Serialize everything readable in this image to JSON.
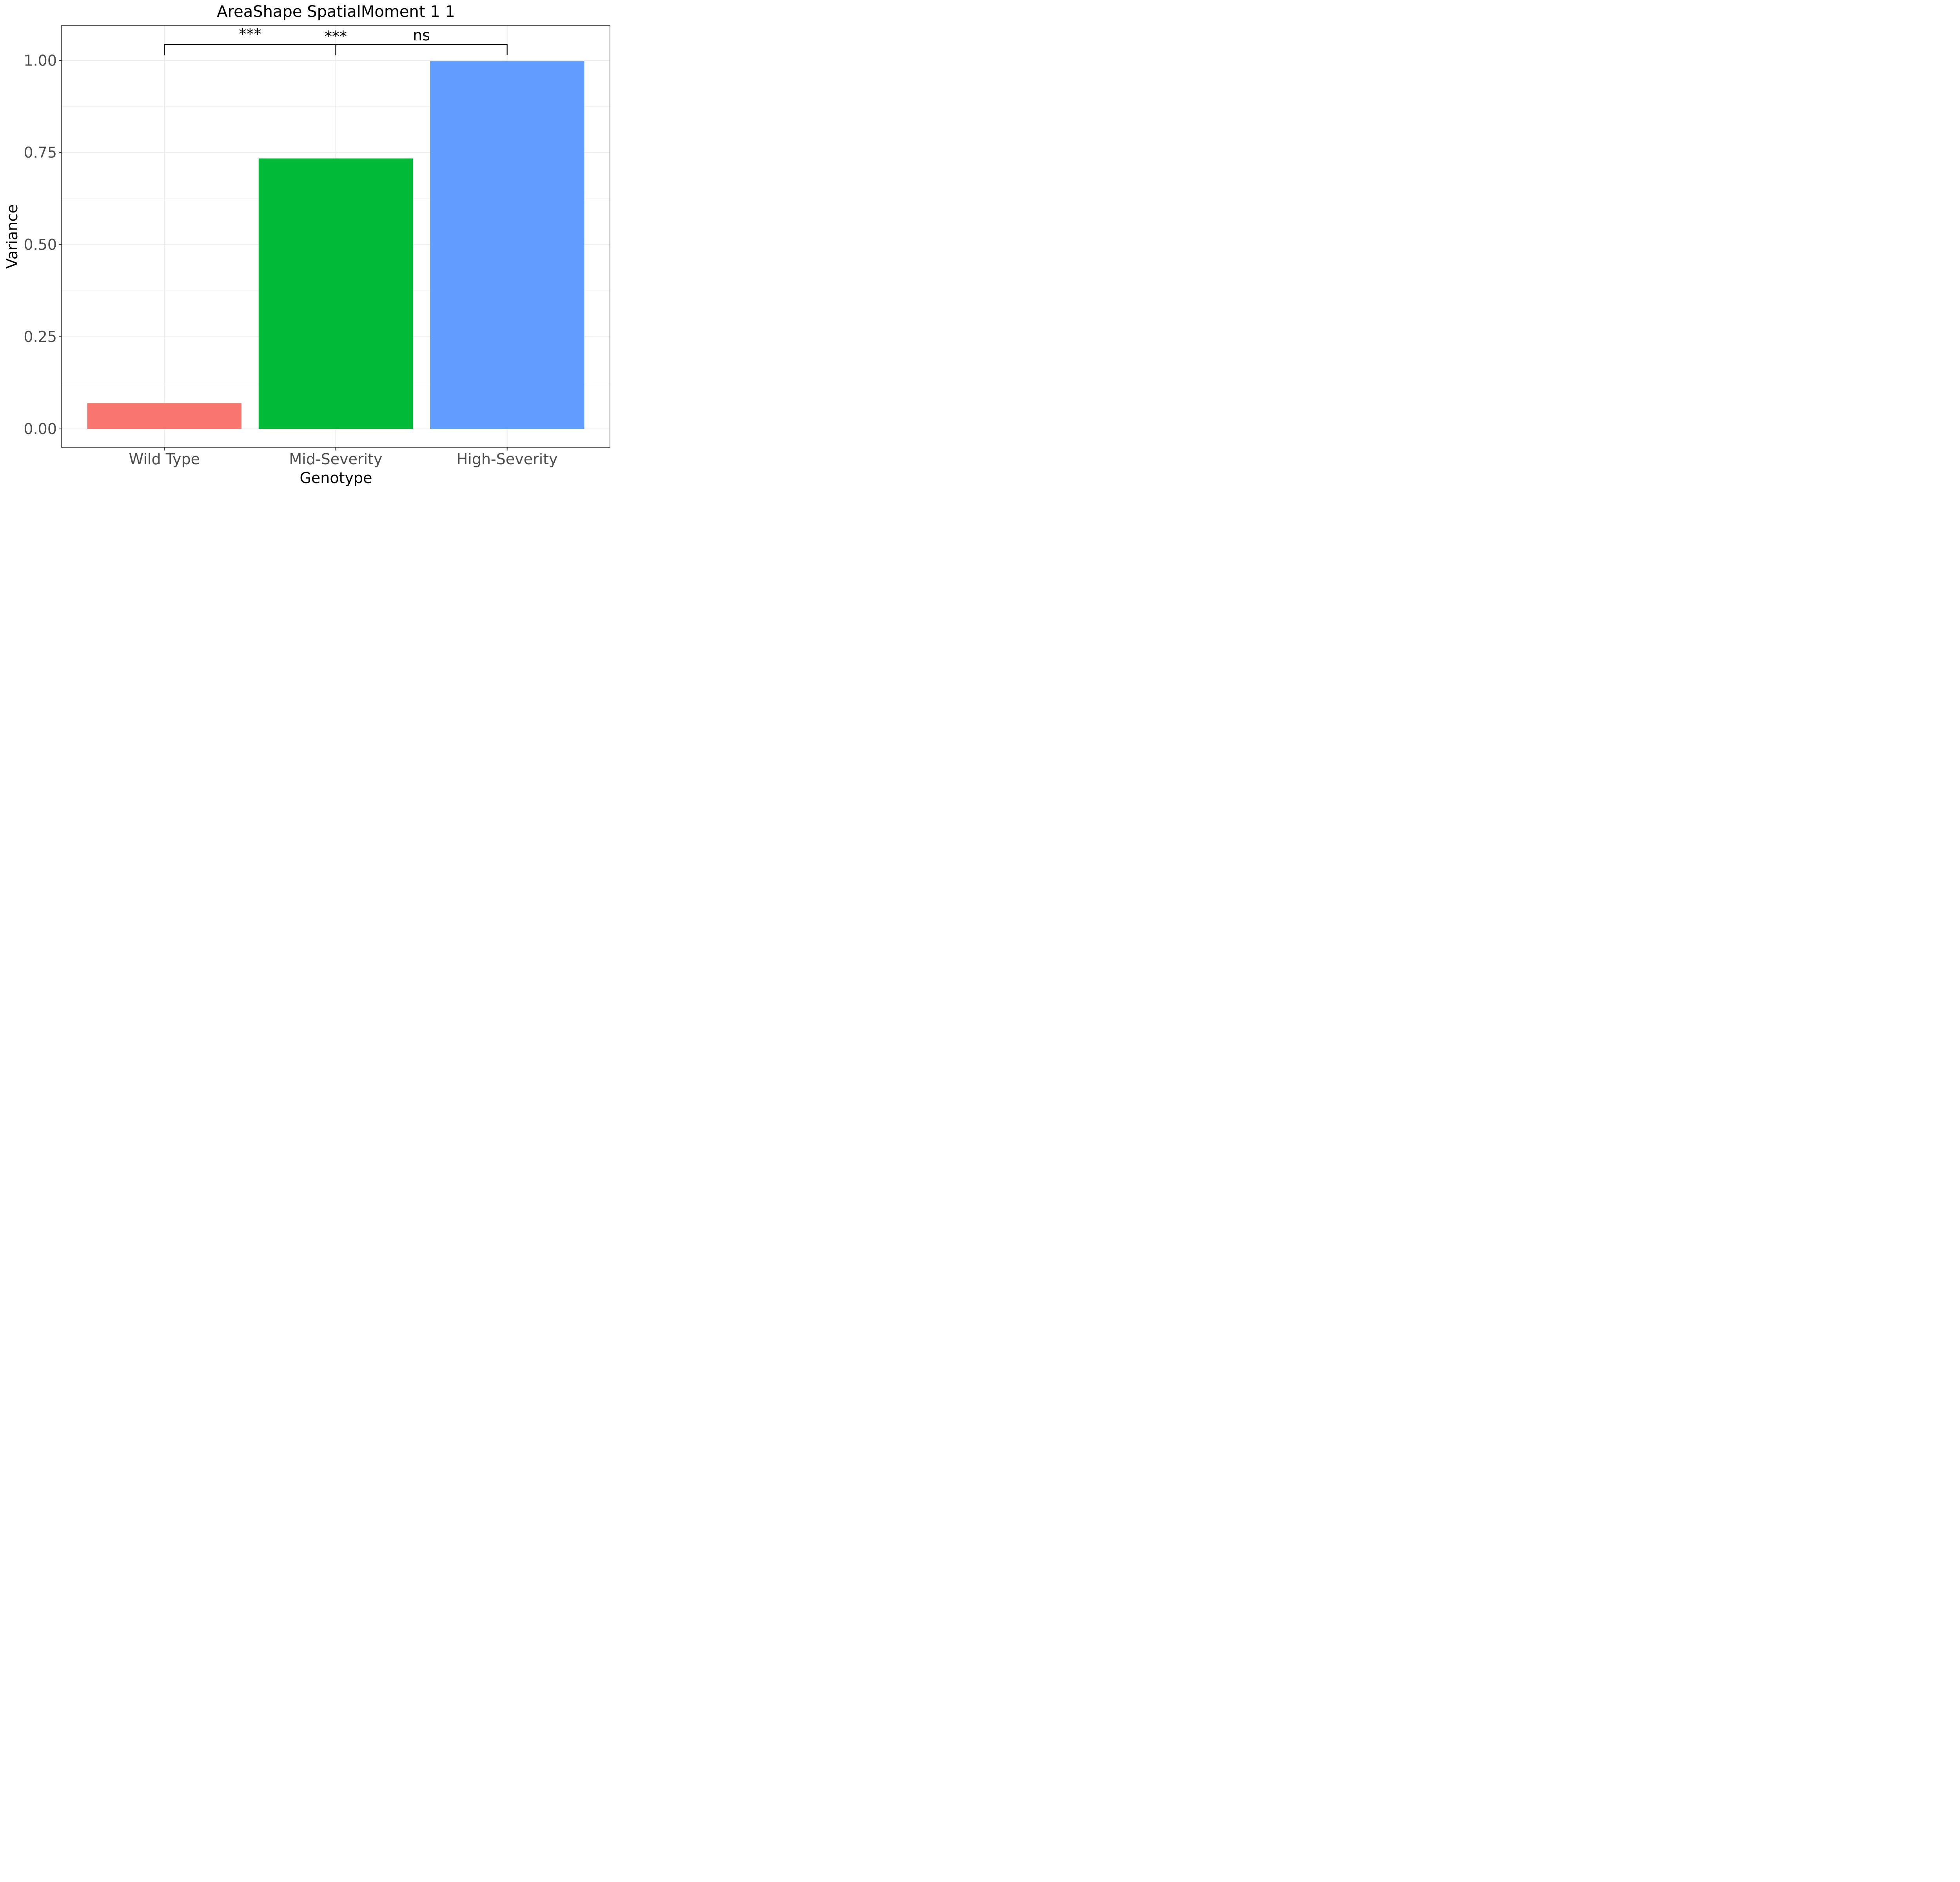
{
  "chart_data": {
    "type": "bar",
    "title": "AreaShape SpatialMoment 1 1",
    "xlabel": "Genotype",
    "ylabel": "Variance",
    "categories": [
      "Wild Type",
      "Mid-Severity",
      "High-Severity"
    ],
    "values": [
      0.07,
      0.734,
      0.998
    ],
    "colors": [
      "#F8766D",
      "#00BA38",
      "#619CFF"
    ],
    "ylim": [
      -0.05,
      1.095
    ],
    "yticks": [
      0,
      0.25,
      0.5,
      0.75,
      1.0
    ],
    "ytick_labels": [
      "0.00",
      "0.25",
      "0.50",
      "0.75",
      "1.00"
    ],
    "grid": true,
    "significance": [
      {
        "from": 0,
        "to": 1,
        "label": "***"
      },
      {
        "from": 1,
        "to": 2,
        "label": "***"
      },
      {
        "from": 0,
        "to": 2,
        "label": "ns"
      }
    ]
  }
}
